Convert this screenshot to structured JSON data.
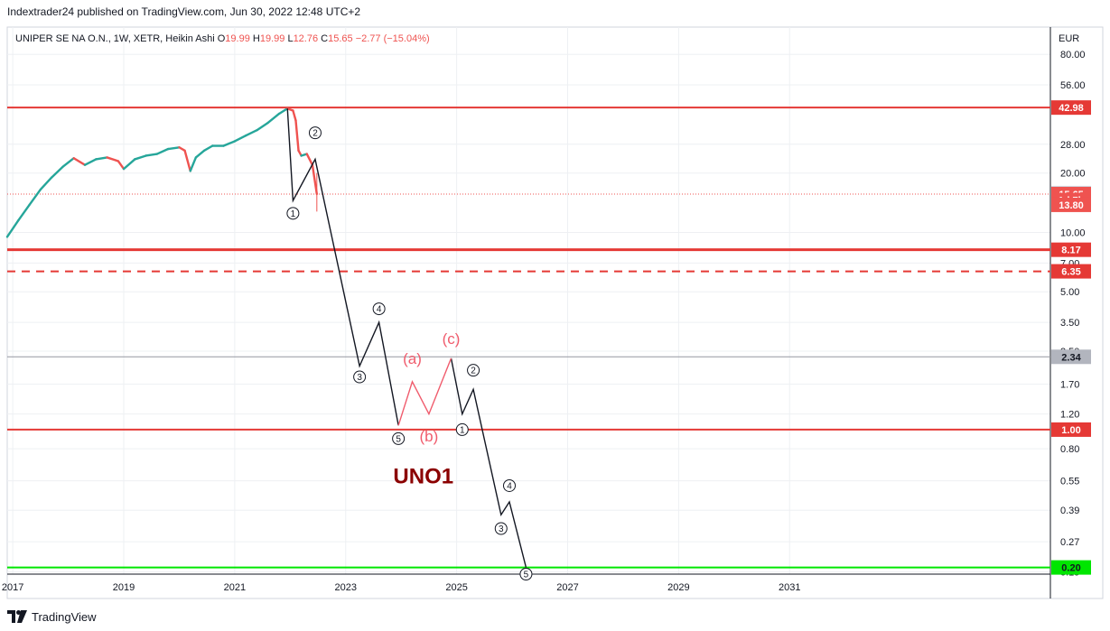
{
  "publisher_line": "Indextrader24 published on TradingView.com, Jun 30, 2022 12:48 UTC+2",
  "footer_brand": "TradingView",
  "icons": {
    "brand_logo": "tradingview-logo-icon"
  },
  "colors": {
    "up": "#26a69a",
    "down": "#ef5350",
    "resistance": "#e53935",
    "support": "#00e600",
    "gray_line": "#9598a1",
    "wave": "#131722",
    "corrective": "#f05b6c",
    "ticker_label": "#8b0000",
    "grid": "#eef0f3"
  },
  "chart_data": {
    "type": "line",
    "symbol": "UNIPER SE NA O.N.",
    "interval": "1W",
    "exchange": "XETR",
    "style": "Heikin Ashi",
    "ohlc": {
      "o_label": "O",
      "o": "19.99",
      "h_label": "H",
      "h": "19.99",
      "l_label": "L",
      "l": "12.76",
      "c_label": "C",
      "c": "15.65",
      "change": "−2.77 (−15.04%)"
    },
    "currency": "EUR",
    "y_scale": "log",
    "ylim": [
      0.185,
      110
    ],
    "xlim": [
      2016.9,
      2035.7
    ],
    "grid": true,
    "x_ticks": [
      {
        "value": 2017,
        "label": "2017"
      },
      {
        "value": 2019,
        "label": "2019"
      },
      {
        "value": 2021,
        "label": "2021"
      },
      {
        "value": 2023,
        "label": "2023"
      },
      {
        "value": 2025,
        "label": "2025"
      },
      {
        "value": 2027,
        "label": "2027"
      },
      {
        "value": 2029,
        "label": "2029"
      },
      {
        "value": 2031,
        "label": "2031"
      }
    ],
    "y_ticks": [
      {
        "value": 80,
        "label": "80.00"
      },
      {
        "value": 56,
        "label": "56.00"
      },
      {
        "value": 28,
        "label": "28.00"
      },
      {
        "value": 20,
        "label": "20.00"
      },
      {
        "value": 10,
        "label": "10.00"
      },
      {
        "value": 7,
        "label": "7.00"
      },
      {
        "value": 5,
        "label": "5.00"
      },
      {
        "value": 3.5,
        "label": "3.50"
      },
      {
        "value": 2.5,
        "label": "2.50"
      },
      {
        "value": 1.7,
        "label": "1.70"
      },
      {
        "value": 1.2,
        "label": "1.20"
      },
      {
        "value": 0.8,
        "label": "0.80"
      },
      {
        "value": 0.55,
        "label": "0.55"
      },
      {
        "value": 0.39,
        "label": "0.39"
      },
      {
        "value": 0.27,
        "label": "0.27"
      },
      {
        "value": 0.19,
        "label": "0.19"
      }
    ],
    "horizontal_levels": [
      {
        "value": 42.98,
        "label": "42.98",
        "style": "solid",
        "color": "#e53935",
        "width": 2
      },
      {
        "value": 8.17,
        "label": "8.17",
        "style": "solid",
        "color": "#e53935",
        "width": 3
      },
      {
        "value": 6.35,
        "label": "6.35",
        "style": "dashed",
        "color": "#e53935",
        "width": 2
      },
      {
        "value": 2.34,
        "label": "2.34",
        "style": "solid",
        "color": "#9598a1",
        "width": 1
      },
      {
        "value": 1.0,
        "label": "1.00",
        "style": "solid",
        "color": "#e53935",
        "width": 2
      },
      {
        "value": 0.2,
        "label": "0.20",
        "style": "solid",
        "color": "#00e600",
        "width": 2
      }
    ],
    "price_badges": [
      {
        "value": 15.83,
        "label": "15.83",
        "kind": "gray"
      },
      {
        "value": 15.65,
        "label": "15.65",
        "kind": "red"
      },
      {
        "value": 14.6,
        "label": "1d 7h",
        "kind": "red"
      },
      {
        "value": 13.8,
        "label": "13.80",
        "kind": "red"
      }
    ],
    "current_price": 15.65,
    "price_series": {
      "x": [
        2016.9,
        2017.1,
        2017.3,
        2017.5,
        2017.7,
        2017.9,
        2018.1,
        2018.3,
        2018.5,
        2018.7,
        2018.9,
        2019.0,
        2019.2,
        2019.4,
        2019.6,
        2019.8,
        2020.0,
        2020.1,
        2020.2,
        2020.3,
        2020.45,
        2020.6,
        2020.8,
        2021.0,
        2021.2,
        2021.4,
        2021.6,
        2021.8,
        2021.95,
        2022.05,
        2022.1,
        2022.15,
        2022.2,
        2022.3,
        2022.4,
        2022.48
      ],
      "y": [
        9.5,
        11.5,
        13.8,
        16.5,
        19,
        21.5,
        23.8,
        22,
        23.5,
        24,
        23,
        21,
        23.5,
        24.5,
        25,
        26.5,
        27,
        26,
        20.5,
        24,
        26,
        27.5,
        27.5,
        29,
        31,
        33,
        36,
        40,
        42.5,
        41.5,
        37,
        26,
        24.5,
        25,
        22,
        15.65
      ]
    },
    "wave_path": {
      "x": [
        2021.95,
        2022.05,
        2022.45,
        2023.25,
        2023.6,
        2023.95
      ],
      "y": [
        42.5,
        14.5,
        23.5,
        2.1,
        3.5,
        1.05
      ]
    },
    "wave_path_2": {
      "x": [
        2024.9,
        2025.1,
        2025.3,
        2025.8,
        2025.95,
        2026.25
      ],
      "y": [
        2.3,
        1.2,
        1.6,
        0.37,
        0.43,
        0.2
      ]
    },
    "corrective_path": {
      "x": [
        2023.95,
        2024.2,
        2024.5,
        2024.9
      ],
      "y": [
        1.05,
        1.75,
        1.2,
        2.3
      ]
    },
    "wave_labels": [
      {
        "text": "1",
        "x": 2022.05,
        "y": 12.5,
        "circled": true,
        "color": "#131722"
      },
      {
        "text": "2",
        "x": 2022.45,
        "y": 32,
        "circled": true,
        "color": "#131722"
      },
      {
        "text": "3",
        "x": 2023.25,
        "y": 1.85,
        "circled": true,
        "color": "#131722"
      },
      {
        "text": "4",
        "x": 2023.6,
        "y": 4.1,
        "circled": true,
        "color": "#131722"
      },
      {
        "text": "5",
        "x": 2023.95,
        "y": 0.9,
        "circled": true,
        "color": "#131722"
      },
      {
        "text": "1",
        "x": 2025.1,
        "y": 1.0,
        "circled": true,
        "color": "#131722"
      },
      {
        "text": "2",
        "x": 2025.3,
        "y": 2.0,
        "circled": true,
        "color": "#131722"
      },
      {
        "text": "3",
        "x": 2025.8,
        "y": 0.315,
        "circled": true,
        "color": "#131722"
      },
      {
        "text": "4",
        "x": 2025.95,
        "y": 0.52,
        "circled": true,
        "color": "#131722"
      },
      {
        "text": "5",
        "x": 2026.25,
        "y": 0.185,
        "circled": true,
        "color": "#131722"
      },
      {
        "text": "(a)",
        "x": 2024.2,
        "y": 2.3,
        "circled": false,
        "color": "#f05b6c"
      },
      {
        "text": "(b)",
        "x": 2024.5,
        "y": 0.93,
        "circled": false,
        "color": "#f05b6c"
      },
      {
        "text": "(c)",
        "x": 2024.9,
        "y": 2.9,
        "circled": false,
        "color": "#f05b6c"
      }
    ],
    "annotations": [
      {
        "text": "UNO1",
        "x": 2024.4,
        "y": 0.58,
        "color": "#8b0000"
      }
    ]
  }
}
